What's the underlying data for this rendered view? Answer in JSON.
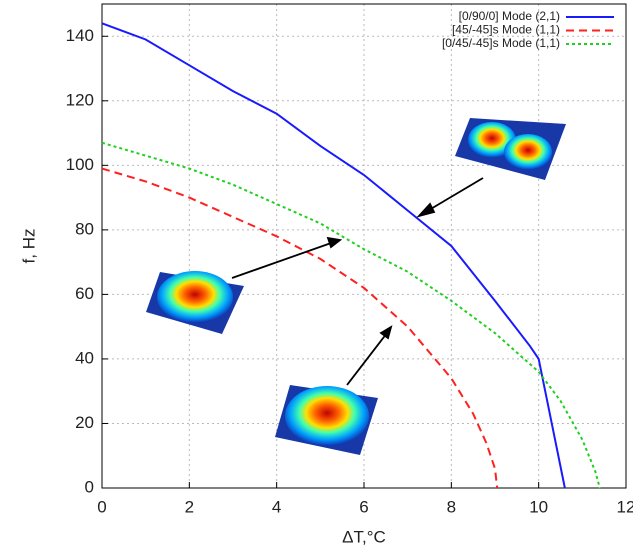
{
  "chart_data": {
    "type": "line",
    "x_label": "ΔT,°C",
    "y_label": "f, Hz",
    "xlim": [
      0,
      12
    ],
    "xticks": [
      0,
      2,
      4,
      6,
      8,
      10,
      12
    ],
    "ylim": [
      0,
      150
    ],
    "yticks": [
      0,
      20,
      40,
      60,
      80,
      100,
      120,
      140
    ],
    "grid": true,
    "legend": "top-right",
    "series": [
      {
        "name": "[0/90/0] Mode (2,1)",
        "color": "#1a1aff",
        "dash": "solid",
        "x": [
          0,
          1,
          2,
          3,
          4,
          5,
          6,
          7,
          8,
          9,
          9.8,
          10,
          10.3,
          10.6
        ],
        "values": [
          144,
          139,
          131,
          123,
          116,
          106,
          97,
          86,
          75,
          58,
          44,
          40,
          20,
          0
        ]
      },
      {
        "name": "[45/-45]s Mode (1,1)",
        "color": "#ff2020",
        "dash": "dashed",
        "x": [
          0,
          1,
          2,
          3,
          4,
          5,
          6,
          7,
          8,
          8.5,
          8.8,
          9,
          9.05
        ],
        "values": [
          99,
          95,
          90,
          84,
          78,
          71,
          62,
          50,
          34,
          23,
          14,
          6,
          0
        ]
      },
      {
        "name": "[0/45/-45]s Mode (1,1)",
        "color": "#20d020",
        "dash": "dotted",
        "x": [
          0,
          1,
          2,
          3,
          4,
          5,
          6,
          7,
          8,
          9,
          10,
          10.5,
          11,
          11.3,
          11.4
        ],
        "values": [
          107,
          103,
          99,
          94,
          88,
          82,
          74,
          67,
          58,
          48,
          36,
          27,
          15,
          5,
          0
        ]
      }
    ]
  }
}
